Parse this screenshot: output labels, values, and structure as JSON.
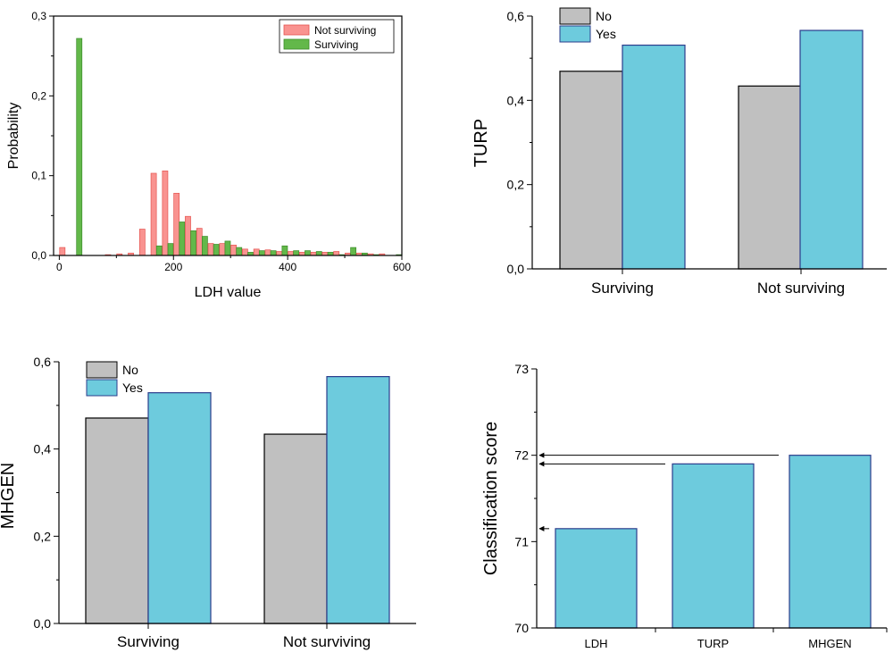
{
  "chart_data": [
    {
      "id": "ldh-histogram",
      "type": "bar",
      "xlabel": "LDH value",
      "ylabel": "Probability",
      "xlim": [
        -10,
        600
      ],
      "ylim": [
        0,
        0.3
      ],
      "x_ticks": [
        {
          "v": 0,
          "label": "0"
        },
        {
          "v": 200,
          "label": "200"
        },
        {
          "v": 400,
          "label": "400"
        },
        {
          "v": 600,
          "label": "600"
        }
      ],
      "y_ticks": [
        {
          "v": 0,
          "label": "0,0"
        },
        {
          "v": 0.1,
          "label": "0,1"
        },
        {
          "v": 0.2,
          "label": "0,2"
        },
        {
          "v": 0.3,
          "label": "0,3"
        }
      ],
      "legend_position": "top-right",
      "x": [
        10,
        30,
        90,
        110,
        130,
        150,
        170,
        190,
        210,
        230,
        250,
        270,
        290,
        310,
        330,
        350,
        370,
        390,
        410,
        430,
        450,
        470,
        490,
        510,
        530,
        550,
        570,
        590
      ],
      "series": [
        {
          "name": "Not surviving",
          "color": "#f99390",
          "values": [
            0.01,
            0.0,
            0.001,
            0.002,
            0.003,
            0.033,
            0.103,
            0.106,
            0.078,
            0.049,
            0.034,
            0.015,
            0.015,
            0.013,
            0.008,
            0.008,
            0.007,
            0.005,
            0.005,
            0.004,
            0.004,
            0.004,
            0.005,
            0.003,
            0.003,
            0.002,
            0.002,
            0.0
          ]
        },
        {
          "name": "Surviving",
          "color": "#63b84a",
          "values": [
            0.0,
            0.272,
            0.0,
            0.0,
            0.0,
            0.0,
            0.012,
            0.015,
            0.042,
            0.031,
            0.024,
            0.014,
            0.018,
            0.01,
            0.004,
            0.006,
            0.006,
            0.012,
            0.006,
            0.006,
            0.005,
            0.004,
            0.001,
            0.01,
            0.003,
            0.001,
            0.0,
            0.001
          ]
        }
      ]
    },
    {
      "id": "turp-bars",
      "type": "bar",
      "ylabel": "TURP",
      "categories": [
        "Surviving",
        "Not surviving"
      ],
      "ylim": [
        0,
        0.6
      ],
      "y_ticks": [
        {
          "v": 0,
          "label": "0,0"
        },
        {
          "v": 0.2,
          "label": "0,2"
        },
        {
          "v": 0.4,
          "label": "0,4"
        },
        {
          "v": 0.6,
          "label": "0,6"
        }
      ],
      "legend_position": "top-left",
      "series": [
        {
          "name": "No",
          "color": "#c0c0c0",
          "values": [
            0.469,
            0.434
          ]
        },
        {
          "name": "Yes",
          "color": "#6dcbdd",
          "values": [
            0.531,
            0.566
          ]
        }
      ]
    },
    {
      "id": "mhgen-bars",
      "type": "bar",
      "ylabel": "MHGEN",
      "categories": [
        "Surviving",
        "Not surviving"
      ],
      "ylim": [
        0,
        0.6
      ],
      "y_ticks": [
        {
          "v": 0,
          "label": "0,0"
        },
        {
          "v": 0.2,
          "label": "0,2"
        },
        {
          "v": 0.4,
          "label": "0,4"
        },
        {
          "v": 0.6,
          "label": "0,6"
        }
      ],
      "legend_position": "top-left",
      "series": [
        {
          "name": "No",
          "color": "#c0c0c0",
          "values": [
            0.471,
            0.434
          ]
        },
        {
          "name": "Yes",
          "color": "#6dcbdd",
          "values": [
            0.529,
            0.566
          ]
        }
      ]
    },
    {
      "id": "classification-score",
      "type": "bar",
      "ylabel": "Classification score",
      "categories": [
        "LDH",
        "TURP",
        "MHGEN"
      ],
      "ylim": [
        70,
        73
      ],
      "y_ticks": [
        {
          "v": 70,
          "label": "70"
        },
        {
          "v": 71,
          "label": "71"
        },
        {
          "v": 72,
          "label": "72"
        },
        {
          "v": 73,
          "label": "73"
        }
      ],
      "series": [
        {
          "color": "#6dcbdd",
          "values": [
            71.15,
            71.9,
            72.0
          ]
        }
      ],
      "annotations": [
        {
          "type": "arrow",
          "level": 71.15
        },
        {
          "type": "arrow",
          "level": 71.9
        },
        {
          "type": "arrow",
          "level": 72.0
        }
      ]
    }
  ]
}
